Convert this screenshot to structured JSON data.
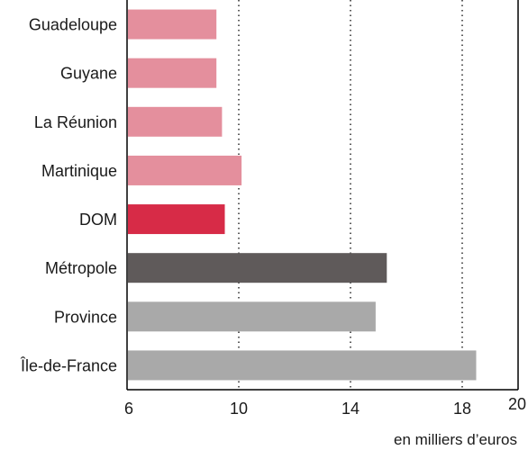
{
  "chart_data": {
    "type": "bar",
    "orientation": "horizontal",
    "categories": [
      "Guadeloupe",
      "Guyane",
      "La Réunion",
      "Martinique",
      "DOM",
      "Métropole",
      "Province",
      "Île-de-France"
    ],
    "values": [
      9.2,
      9.2,
      9.4,
      10.1,
      9.5,
      15.3,
      14.9,
      18.5
    ],
    "colors": [
      "#e48f9d",
      "#e48f9d",
      "#e48f9d",
      "#e48f9d",
      "#d72b47",
      "#5f5a5a",
      "#a9a9a9",
      "#a9a9a9"
    ],
    "xlim": [
      6,
      20
    ],
    "xticks": [
      6,
      10,
      14,
      18,
      20
    ],
    "xlabel": "en milliers d’euros",
    "title": "",
    "ylabel": "",
    "grid": "vertical dotted"
  }
}
